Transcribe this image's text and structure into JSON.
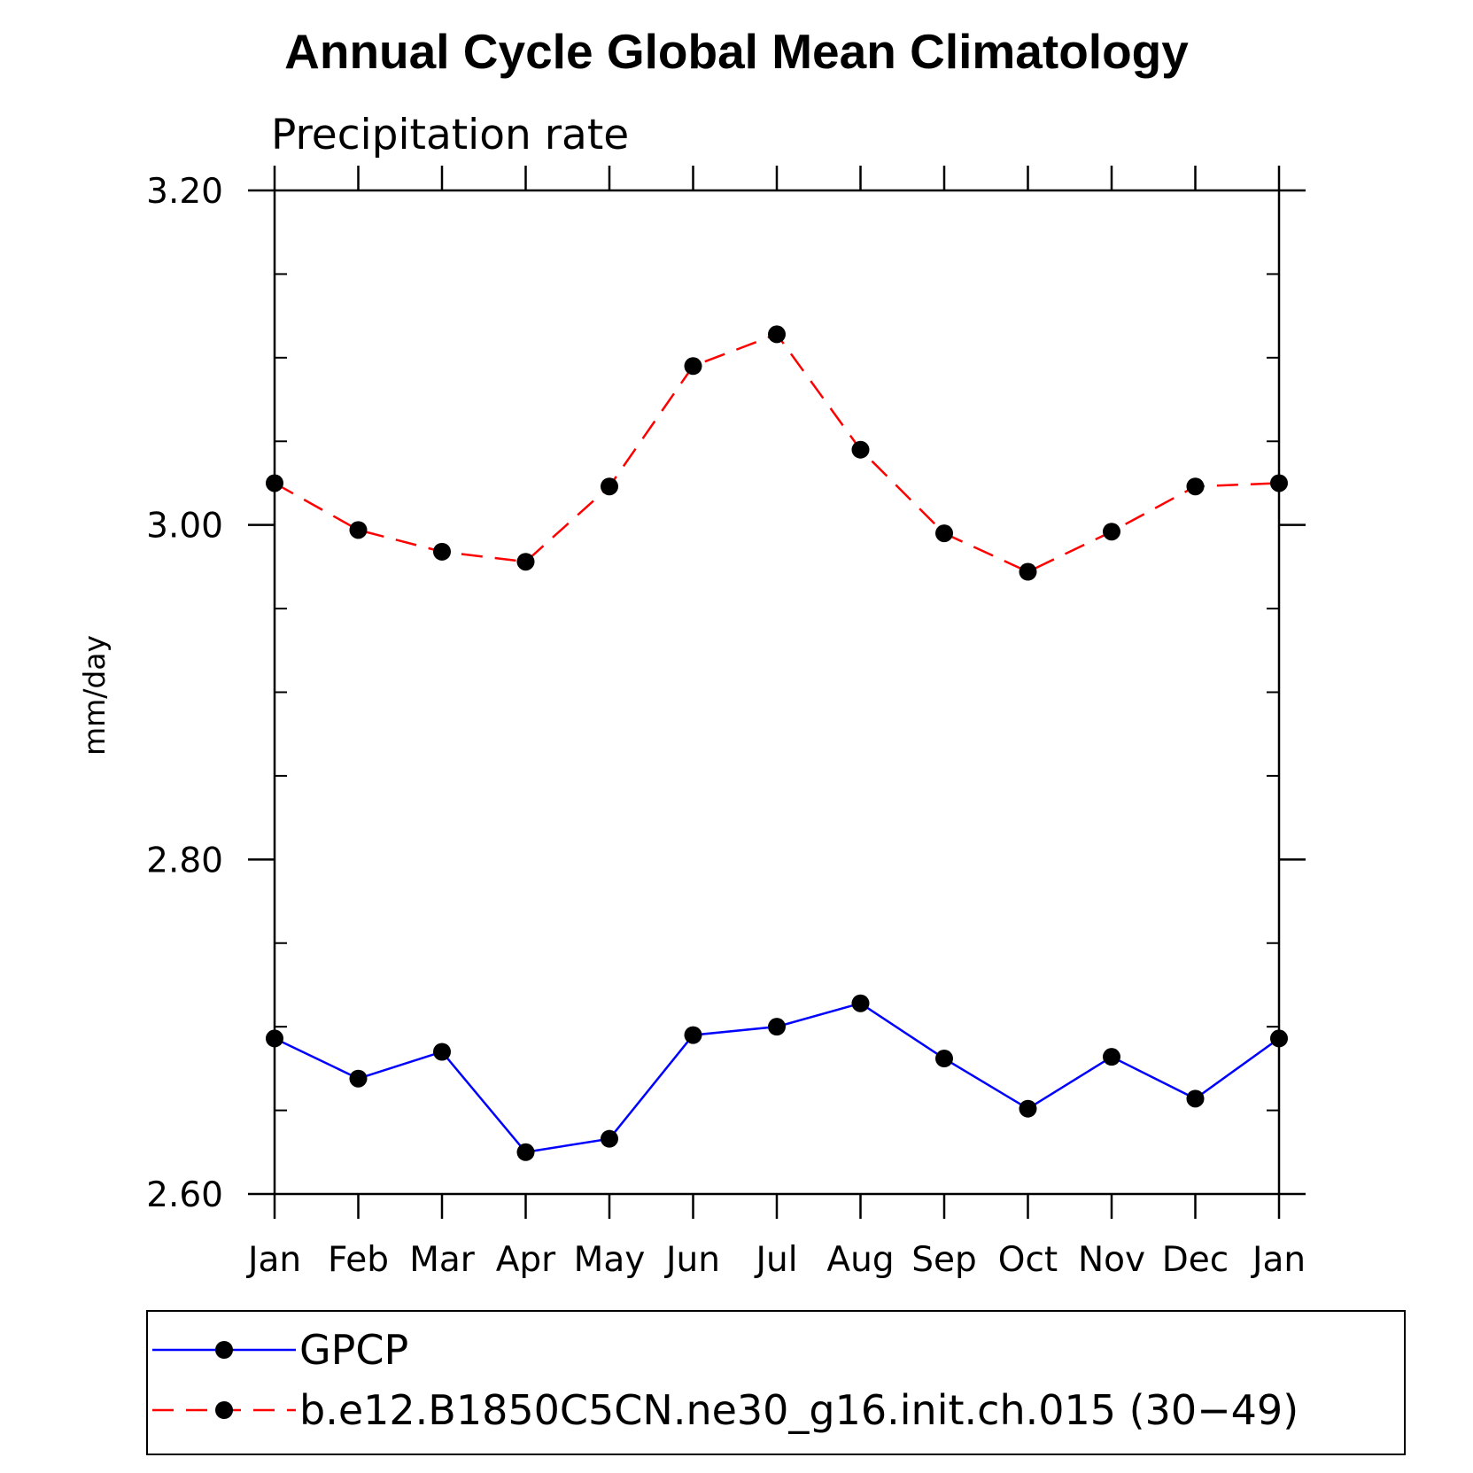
{
  "chart_data": {
    "type": "line",
    "title": "Annual Cycle Global Mean Climatology",
    "subtitle": "Precipitation rate",
    "xlabel": "",
    "ylabel": "mm/day",
    "categories": [
      "Jan",
      "Feb",
      "Mar",
      "Apr",
      "May",
      "Jun",
      "Jul",
      "Aug",
      "Sep",
      "Oct",
      "Nov",
      "Dec",
      "Jan"
    ],
    "ylim": [
      2.6,
      3.2
    ],
    "yticks": [
      "2.60",
      "2.80",
      "3.00",
      "3.20"
    ],
    "y_minor_step": 0.05,
    "series": [
      {
        "name": "GPCP",
        "color": "#0000ff",
        "style": "solid",
        "values": [
          2.693,
          2.669,
          2.685,
          2.625,
          2.633,
          2.695,
          2.7,
          2.714,
          2.681,
          2.651,
          2.682,
          2.657,
          2.693
        ]
      },
      {
        "name": "b.e12.B1850C5CN.ne30_g16.init.ch.015 (30−49)",
        "color": "#ff0000",
        "style": "dashed",
        "values": [
          3.025,
          2.997,
          2.984,
          2.978,
          3.023,
          3.095,
          3.114,
          3.045,
          2.995,
          2.972,
          2.996,
          3.023,
          3.025
        ]
      }
    ],
    "legend_position": "bottom",
    "marker_color": "#000000"
  }
}
